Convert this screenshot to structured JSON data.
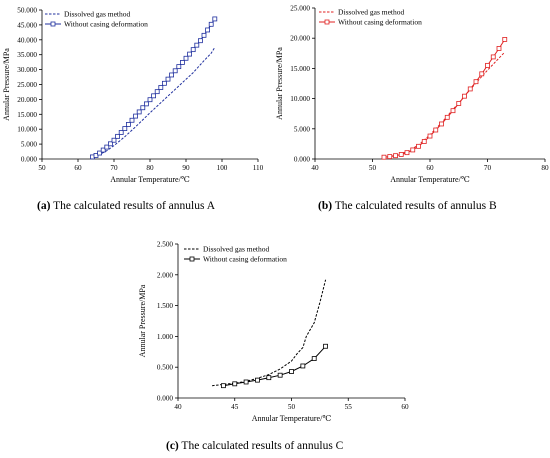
{
  "captions": [
    {
      "tag": "(a)",
      "text": " The calculated results of annulus A"
    },
    {
      "tag": "(b)",
      "text": " The calculated results of annulus B"
    },
    {
      "tag": "(c)",
      "text": " The calculated results of annulus C"
    }
  ],
  "chart_data": [
    {
      "type": "line",
      "panel": "a",
      "xlabel": "Annular Temperature/℃",
      "ylabel": "Annular Pressure/MPa",
      "xlim": [
        50,
        110
      ],
      "ylim": [
        0,
        50
      ],
      "xticks": [
        "50",
        "60",
        "70",
        "80",
        "90",
        "100",
        "110"
      ],
      "yticks": [
        "0.000",
        "5.000",
        "10.000",
        "15.000",
        "20.000",
        "25.000",
        "30.000",
        "35.000",
        "40.000",
        "45.000",
        "50.000"
      ],
      "grid": false,
      "legend_position": "top-left",
      "series": [
        {
          "name": "Dissolved gas method",
          "color": "#1f2f9e",
          "dashed": true,
          "marker": "none",
          "x": [
            63.5,
            66,
            68,
            70,
            73,
            76,
            80,
            84,
            88,
            92,
            95,
            97,
            98
          ],
          "y": [
            0.5,
            1.5,
            2.8,
            4.5,
            7.5,
            10.8,
            15.5,
            20.0,
            24.5,
            29.0,
            33.0,
            35.5,
            37.5
          ]
        },
        {
          "name": "Without casing deformation",
          "color": "#1f2f9e",
          "dashed": false,
          "marker": "square",
          "x": [
            64,
            65,
            66,
            67,
            68,
            69,
            70,
            71,
            72,
            73,
            74,
            75,
            76,
            77,
            78,
            79,
            80,
            81,
            82,
            83,
            84,
            85,
            86,
            87,
            88,
            89,
            90,
            91,
            92,
            93,
            94,
            95,
            96,
            97,
            98
          ],
          "y": [
            0.7,
            1.2,
            2.0,
            3.0,
            4.0,
            5.1,
            6.3,
            7.6,
            8.9,
            10.2,
            11.6,
            13.0,
            14.4,
            15.8,
            17.2,
            18.5,
            19.9,
            21.2,
            22.6,
            24.0,
            25.4,
            26.8,
            28.2,
            29.6,
            31.0,
            32.4,
            33.8,
            35.2,
            36.7,
            38.2,
            39.7,
            41.5,
            43.3,
            45.2,
            47.0
          ]
        }
      ]
    },
    {
      "type": "line",
      "panel": "b",
      "xlabel": "Annular Temperature/℃",
      "ylabel": "Annular Pressure/MPa",
      "xlim": [
        40,
        80
      ],
      "ylim": [
        0,
        25
      ],
      "xticks": [
        "40",
        "50",
        "60",
        "70",
        "80"
      ],
      "yticks": [
        "0.000",
        "5.000",
        "10.000",
        "15.000",
        "20.000",
        "25.000"
      ],
      "grid": false,
      "legend_position": "top-left",
      "series": [
        {
          "name": "Dissolved gas method",
          "color": "#e02020",
          "dashed": true,
          "marker": "none",
          "x": [
            52,
            54,
            56,
            58,
            60,
            62,
            64,
            66,
            68,
            70,
            72,
            73
          ],
          "y": [
            0.3,
            0.6,
            1.2,
            2.3,
            4.0,
            6.0,
            8.2,
            10.4,
            12.6,
            14.7,
            16.7,
            17.7
          ]
        },
        {
          "name": "Without casing deformation",
          "color": "#e02020",
          "dashed": false,
          "marker": "square",
          "x": [
            52,
            53,
            54,
            55,
            56,
            57,
            58,
            59,
            60,
            61,
            62,
            63,
            64,
            65,
            66,
            67,
            68,
            69,
            70,
            71,
            72,
            73
          ],
          "y": [
            0.3,
            0.4,
            0.55,
            0.75,
            1.05,
            1.5,
            2.1,
            2.9,
            3.8,
            4.8,
            5.8,
            6.9,
            8.0,
            9.2,
            10.4,
            11.6,
            12.8,
            14.1,
            15.5,
            16.9,
            18.3,
            19.8
          ]
        }
      ]
    },
    {
      "type": "line",
      "panel": "c",
      "xlabel": "Annular Temperature/℃",
      "ylabel": "Annular Pressure/MPa",
      "xlim": [
        40,
        60
      ],
      "ylim": [
        0,
        2.5
      ],
      "xticks": [
        "40",
        "45",
        "50",
        "55",
        "60"
      ],
      "yticks": [
        "0.000",
        "0.500",
        "1.000",
        "1.500",
        "2.000",
        "2.500"
      ],
      "grid": false,
      "legend_position": "top-left",
      "series": [
        {
          "name": "Dissolved gas method",
          "color": "#000000",
          "dashed": true,
          "marker": "none",
          "x": [
            43,
            44,
            45,
            46,
            47,
            48,
            49,
            50,
            50.5,
            51,
            51.3,
            52,
            52.5,
            53
          ],
          "y": [
            0.2,
            0.22,
            0.24,
            0.27,
            0.32,
            0.38,
            0.47,
            0.6,
            0.72,
            0.82,
            1.0,
            1.22,
            1.55,
            1.92
          ]
        },
        {
          "name": "Without casing deformation",
          "color": "#000000",
          "dashed": false,
          "marker": "square",
          "x": [
            44,
            45,
            46,
            47,
            48,
            49,
            50,
            51,
            52,
            53
          ],
          "y": [
            0.2,
            0.23,
            0.26,
            0.29,
            0.33,
            0.37,
            0.43,
            0.52,
            0.64,
            0.84
          ]
        }
      ]
    }
  ]
}
